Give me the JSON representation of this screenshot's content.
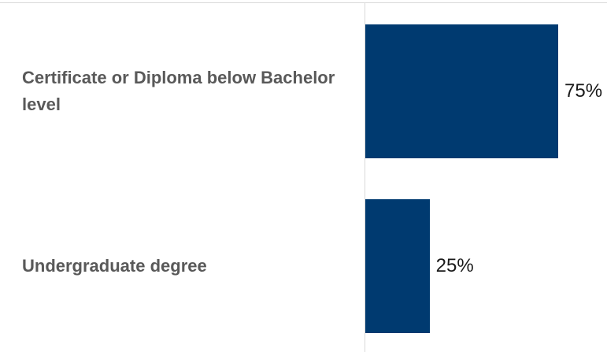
{
  "colors": {
    "bar": "#003a70",
    "category_text": "#595959",
    "axis": "#d9d9d9"
  },
  "chart_data": {
    "type": "bar",
    "orientation": "horizontal",
    "title": "",
    "xlabel": "",
    "ylabel": "",
    "xlim": [
      0,
      100
    ],
    "grid": false,
    "legend": "none",
    "categories": [
      "Certificate or Diploma below Bachelor level",
      "Undergraduate degree"
    ],
    "values": [
      75,
      25
    ],
    "value_labels": [
      "75%",
      "25%"
    ]
  }
}
